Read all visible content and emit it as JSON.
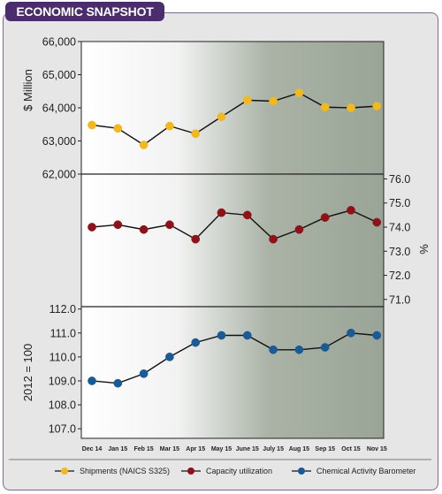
{
  "header": {
    "title": "ECONOMIC SNAPSHOT"
  },
  "chart_data": {
    "type": "line",
    "categories": [
      "Dec 14",
      "Jan 15",
      "Feb 15",
      "Mar 15",
      "Apr 15",
      "May 15",
      "June 15",
      "July 15",
      "Aug 15",
      "Sep 15",
      "Oct 15",
      "Nov 15"
    ],
    "panels": [
      {
        "series_name": "Shipments (NAICS S325)",
        "ylabel": "$ Million",
        "axis_side": "left",
        "ylim": [
          62000,
          66000
        ],
        "ticks": [
          "66,000",
          "65,000",
          "64,000",
          "63,000",
          "62,000"
        ],
        "tick_values": [
          66000,
          65000,
          64000,
          63000,
          62000
        ],
        "values": [
          63480,
          63380,
          62880,
          63450,
          63220,
          63730,
          64230,
          64200,
          64450,
          64020,
          64000,
          64050
        ],
        "color": "#f2b81c"
      },
      {
        "series_name": "Capacity utilization",
        "ylabel": "%",
        "axis_side": "right",
        "ylim": [
          70.7,
          76.2
        ],
        "ticks": [
          "76.0",
          "75.0",
          "74.0",
          "73.0",
          "72.0",
          "71.0"
        ],
        "tick_values": [
          76,
          75,
          74,
          73,
          72,
          71
        ],
        "values": [
          74.0,
          74.1,
          73.9,
          74.1,
          73.5,
          74.6,
          74.5,
          73.5,
          73.9,
          74.4,
          74.7,
          74.2
        ],
        "color": "#8e1218"
      },
      {
        "series_name": "Chemical Activity Barometer",
        "ylabel": "2012 = 100",
        "axis_side": "left",
        "ylim": [
          106.6,
          112.1
        ],
        "ticks": [
          "112.0",
          "111.0",
          "110.0",
          "109.0",
          "108.0",
          "107.0"
        ],
        "tick_values": [
          112,
          111,
          110,
          109,
          108,
          107
        ],
        "values": [
          109.0,
          108.9,
          109.3,
          110.0,
          110.6,
          110.9,
          110.9,
          110.3,
          110.3,
          110.4,
          111.0,
          110.9
        ],
        "color": "#1a5a96"
      }
    ],
    "legend": {
      "placement": "bottom",
      "entries": [
        "Shipments (NAICS S325)",
        "Capacity utilization",
        "Chemical Activity Barometer"
      ]
    },
    "grid": false
  }
}
